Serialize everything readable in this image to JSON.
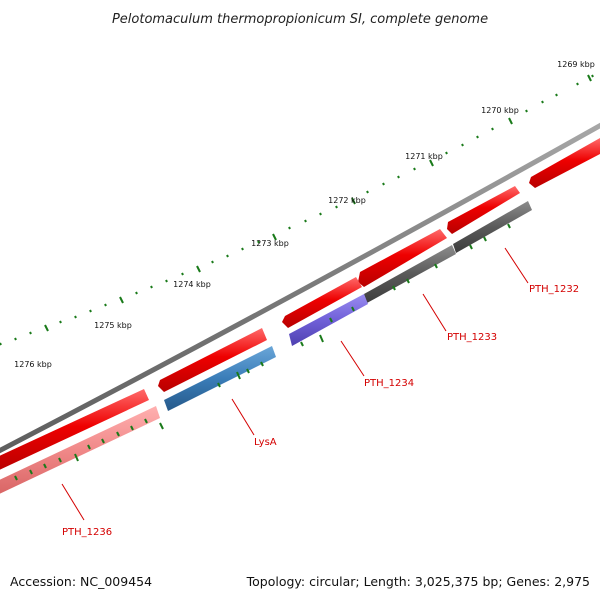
{
  "title": "Pelotomaculum thermopropionicum SI, complete genome",
  "accession": "Accession: NC_009454",
  "summary": "Topology: circular; Length: 3,025,375 bp; Genes: 2,975",
  "colors": {
    "backbone": "#808080",
    "tick": "#1a7a1a",
    "label": "#d40000",
    "cds": "#ee0000",
    "cds_highlight": "#ff6a6a",
    "gray_gene": "#5a5a5a",
    "blue_gene": "#3a7db8",
    "purple_gene": "#7060d8",
    "pink_gene": "#f08888"
  },
  "ticks": {
    "labels": [
      "1269 kbp",
      "1270 kbp",
      "1271 kbp",
      "1272 kbp",
      "1273 kbp",
      "1274 kbp",
      "1275 kbp",
      "1276 kbp"
    ]
  },
  "genes": [
    {
      "name": "PTH_1232",
      "color": "gray_gene"
    },
    {
      "name": "PTH_1233",
      "color": "gray_gene"
    },
    {
      "name": "PTH_1234",
      "color": "purple_gene"
    },
    {
      "name": "LysA",
      "color": "blue_gene"
    },
    {
      "name": "PTH_1236",
      "color": "pink_gene"
    }
  ]
}
